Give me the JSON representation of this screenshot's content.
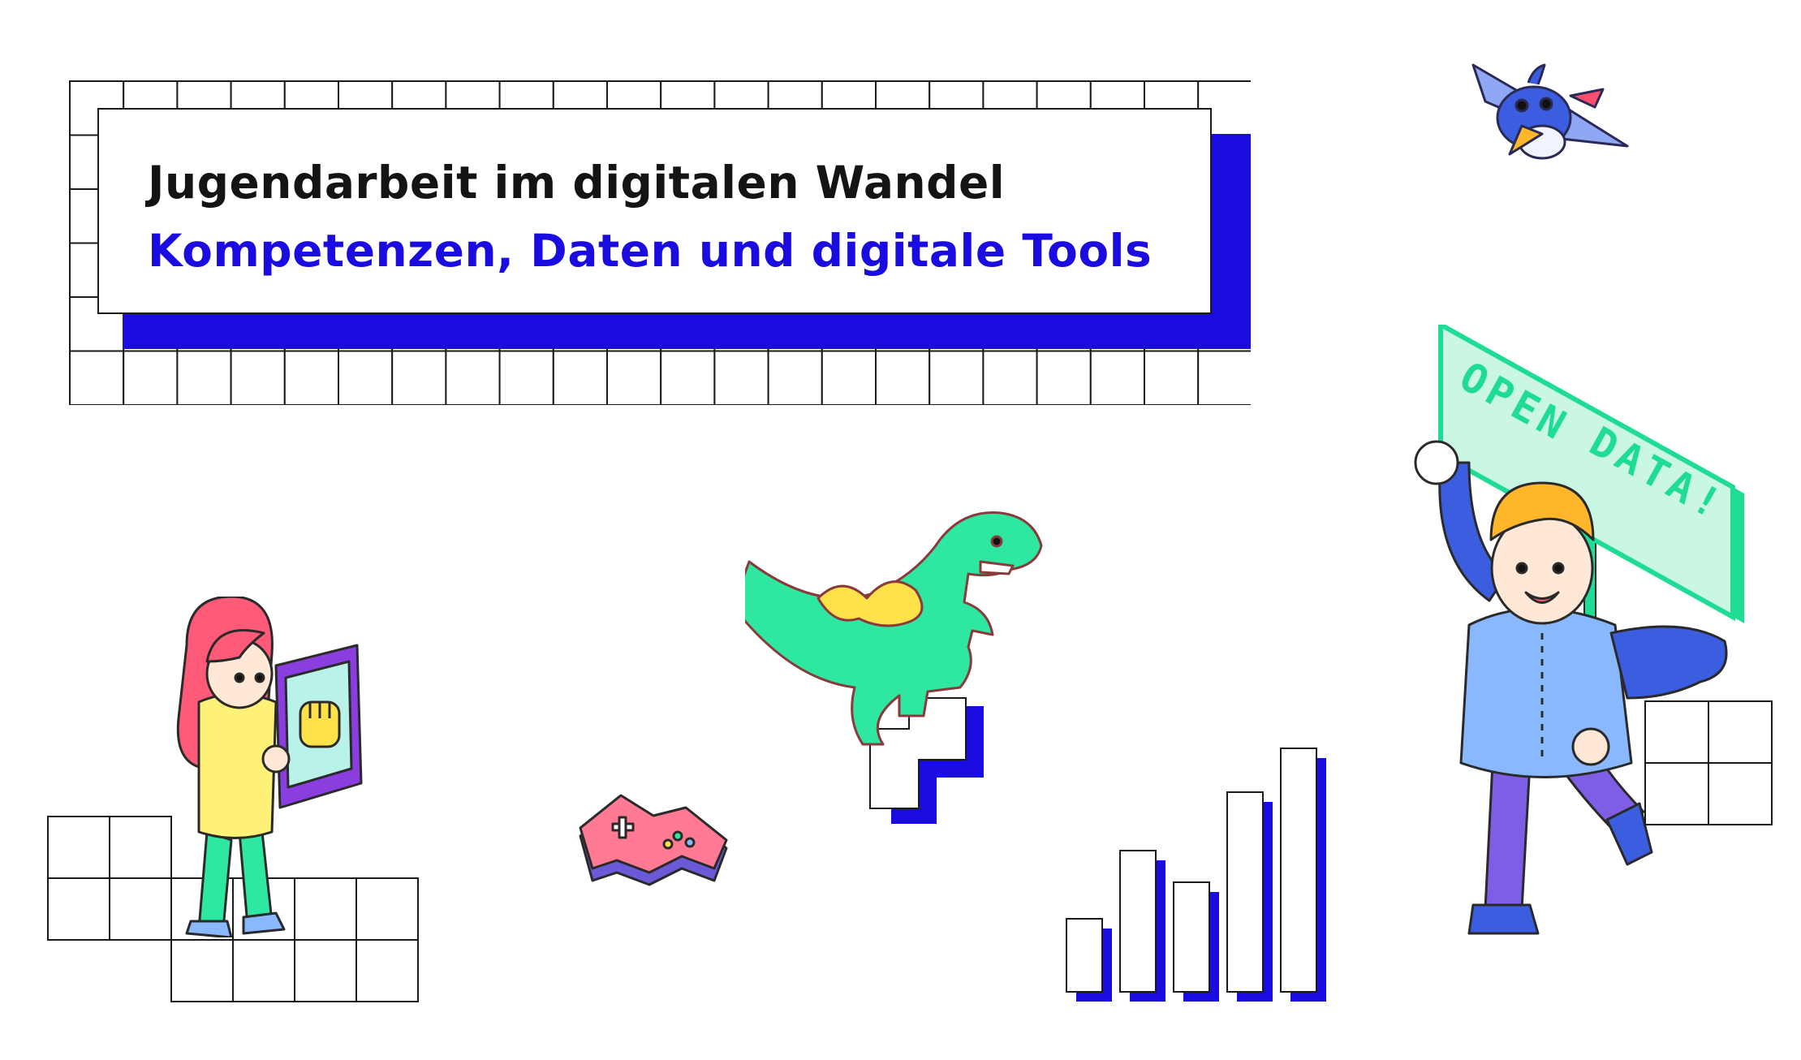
{
  "title": {
    "line1": "Jugendarbeit im digitalen Wandel",
    "line2": "Kompetenzen, Daten und digitale Tools"
  },
  "sign": {
    "line1": "OPEN",
    "line2": "DATA!"
  },
  "bar_levels": [
    0.3,
    0.58,
    0.45,
    0.82,
    1.0
  ],
  "colors": {
    "accent_blue": "#1a0be0",
    "sign_green": "#1fdc95",
    "dino_green": "#2ee8a2",
    "outline": "#1a1a1a"
  },
  "icons": [
    "girl-with-tablet-illustration",
    "fist-icon",
    "gamepad-icon",
    "dinosaur-illustration",
    "bird-illustration",
    "boy-with-sign-illustration",
    "bar-chart-illustration"
  ]
}
